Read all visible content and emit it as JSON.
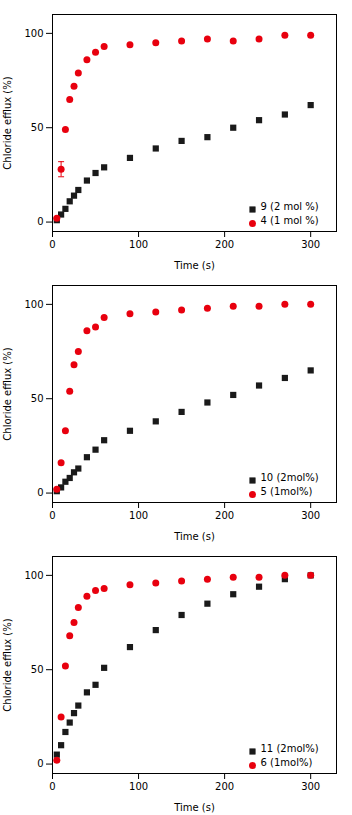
{
  "chart_data": [
    {
      "type": "scatter",
      "xlabel": "Time (s)",
      "ylabel": "Chloride efflux (%)",
      "x": [
        5,
        10,
        15,
        20,
        25,
        30,
        40,
        50,
        60,
        90,
        120,
        150,
        180,
        210,
        240,
        270,
        300
      ],
      "series": [
        {
          "name": "9 (2 mol %)",
          "color": "#1a1a1a",
          "marker": "square",
          "values": [
            1,
            4,
            7,
            11,
            14,
            17,
            22,
            26,
            29,
            34,
            39,
            43,
            45,
            50,
            54,
            57,
            62
          ]
        },
        {
          "name": "4 (1 mol %)",
          "color": "#e8000e",
          "marker": "circle",
          "values": [
            2,
            28,
            49,
            65,
            72,
            79,
            86,
            90,
            93,
            94,
            95,
            96,
            97,
            96,
            97,
            99,
            99
          ],
          "yerr": [
            null,
            4,
            null,
            null,
            null,
            null,
            null,
            null,
            null,
            null,
            null,
            null,
            null,
            null,
            null,
            null,
            null
          ]
        }
      ],
      "xlim": [
        0,
        330
      ],
      "ylim": [
        -5,
        110
      ],
      "xticks": [
        0,
        100,
        200,
        300
      ],
      "yticks": [
        0,
        50,
        100
      ],
      "legend": "lower right"
    },
    {
      "type": "scatter",
      "xlabel": "Time (s)",
      "ylabel": "Chloride efflux (%)",
      "x": [
        5,
        10,
        15,
        20,
        25,
        30,
        40,
        50,
        60,
        90,
        120,
        150,
        180,
        210,
        240,
        270,
        300
      ],
      "series": [
        {
          "name": "10 (2mol%)",
          "color": "#1a1a1a",
          "marker": "square",
          "values": [
            1,
            3,
            6,
            8,
            11,
            13,
            19,
            23,
            28,
            33,
            38,
            43,
            48,
            52,
            57,
            61,
            65
          ]
        },
        {
          "name": "5 (1mol%)",
          "color": "#e8000e",
          "marker": "circle",
          "values": [
            2,
            16,
            33,
            54,
            68,
            75,
            86,
            88,
            93,
            95,
            96,
            97,
            98,
            99,
            99,
            100,
            100
          ]
        }
      ],
      "xlim": [
        0,
        330
      ],
      "ylim": [
        -5,
        110
      ],
      "xticks": [
        0,
        100,
        200,
        300
      ],
      "yticks": [
        0,
        50,
        100
      ],
      "legend": "lower right"
    },
    {
      "type": "scatter",
      "xlabel": "Time (s)",
      "ylabel": "Chloride efflux (%)",
      "x": [
        5,
        10,
        15,
        20,
        25,
        30,
        40,
        50,
        60,
        90,
        120,
        150,
        180,
        210,
        240,
        270,
        300
      ],
      "series": [
        {
          "name": "11 (2mol%)",
          "color": "#1a1a1a",
          "marker": "square",
          "values": [
            5,
            10,
            17,
            22,
            27,
            31,
            38,
            42,
            51,
            62,
            71,
            79,
            85,
            90,
            94,
            98,
            100
          ]
        },
        {
          "name": "6 (1mol%)",
          "color": "#e8000e",
          "marker": "circle",
          "values": [
            2,
            25,
            52,
            68,
            75,
            83,
            89,
            92,
            93,
            95,
            96,
            97,
            98,
            99,
            99,
            100,
            100
          ]
        }
      ],
      "xlim": [
        0,
        330
      ],
      "ylim": [
        -5,
        110
      ],
      "xticks": [
        0,
        100,
        200,
        300
      ],
      "yticks": [
        0,
        50,
        100
      ],
      "legend": "lower right"
    }
  ]
}
